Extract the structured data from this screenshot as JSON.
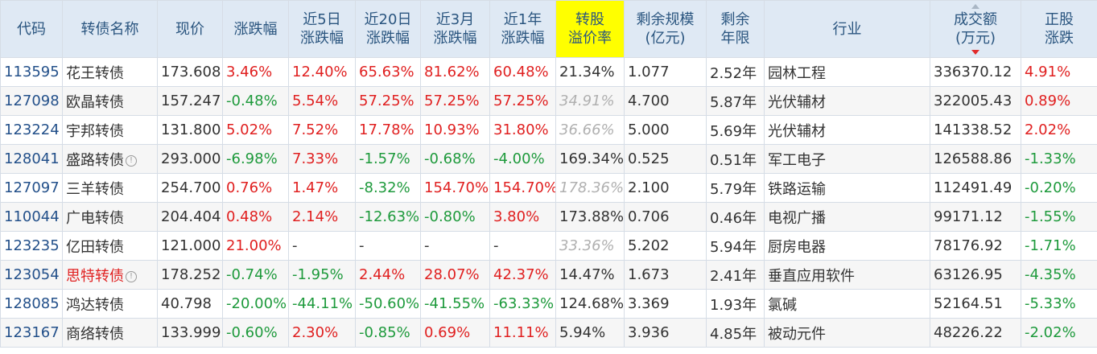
{
  "columns": [
    "代码",
    "转债名称",
    "现价",
    "涨跌幅",
    "近5日\n涨跌幅",
    "近20日\n涨跌幅",
    "近3月\n涨跌幅",
    "近1年\n涨跌幅",
    "转股\n溢价率",
    "剩余规模\n(亿元)",
    "剩余\n年限",
    "行业",
    "成交额\n(万元)",
    "正股\n涨跌"
  ],
  "colors": {
    "up": "#e02020",
    "down": "#1e9a3c",
    "code": "#23508a",
    "header_bg": "#dfe9f4",
    "highlight": "#ffff00"
  },
  "rows": [
    {
      "code": "113595",
      "name": "花王转债",
      "price": "173.608",
      "chg": "3.46%",
      "chg5": "12.40%",
      "chg20": "65.63%",
      "chg3m": "81.62%",
      "chg1y": "60.48%",
      "premium": "21.34%",
      "premium_muted": false,
      "size": "1.077",
      "years": "2.52年",
      "industry": "园林工程",
      "volume": "336370.12",
      "stock_chg": "4.91%"
    },
    {
      "code": "127098",
      "name": "欧晶转债",
      "price": "157.247",
      "chg": "-0.48%",
      "chg5": "5.54%",
      "chg20": "57.25%",
      "chg3m": "57.25%",
      "chg1y": "57.25%",
      "premium": "34.91%",
      "premium_muted": true,
      "size": "4.700",
      "years": "5.87年",
      "industry": "光伏辅材",
      "volume": "322005.43",
      "stock_chg": "0.89%"
    },
    {
      "code": "123224",
      "name": "宇邦转债",
      "price": "131.800",
      "chg": "5.02%",
      "chg5": "7.52%",
      "chg20": "17.78%",
      "chg3m": "10.93%",
      "chg1y": "31.80%",
      "premium": "36.66%",
      "premium_muted": true,
      "size": "5.000",
      "years": "5.69年",
      "industry": "光伏辅材",
      "volume": "141338.52",
      "stock_chg": "2.02%"
    },
    {
      "code": "128041",
      "name": "盛路转债",
      "info": "!",
      "price": "293.000",
      "chg": "-6.98%",
      "chg5": "7.33%",
      "chg20": "-1.57%",
      "chg3m": "-0.68%",
      "chg1y": "-4.00%",
      "premium": "169.34%",
      "premium_muted": false,
      "size": "0.525",
      "years": "0.51年",
      "industry": "军工电子",
      "volume": "126588.86",
      "stock_chg": "-1.33%"
    },
    {
      "code": "127097",
      "name": "三羊转债",
      "price": "254.700",
      "chg": "0.76%",
      "chg5": "1.47%",
      "chg20": "-8.32%",
      "chg3m": "154.70%",
      "chg1y": "154.70%",
      "premium": "178.36%",
      "premium_muted": true,
      "size": "2.100",
      "years": "5.79年",
      "industry": "铁路运输",
      "volume": "112491.49",
      "stock_chg": "-0.20%"
    },
    {
      "code": "110044",
      "name": "广电转债",
      "price": "204.404",
      "chg": "0.48%",
      "chg5": "2.14%",
      "chg20": "-12.63%",
      "chg3m": "-0.80%",
      "chg1y": "3.80%",
      "premium": "173.88%",
      "premium_muted": false,
      "size": "0.706",
      "years": "0.46年",
      "industry": "电视广播",
      "volume": "99171.12",
      "stock_chg": "-1.55%"
    },
    {
      "code": "123235",
      "name": "亿田转债",
      "price": "121.000",
      "chg": "21.00%",
      "chg5": "-",
      "chg20": "-",
      "chg3m": "-",
      "chg1y": "-",
      "premium": "33.36%",
      "premium_muted": true,
      "size": "5.202",
      "years": "5.94年",
      "industry": "厨房电器",
      "volume": "78176.92",
      "stock_chg": "-1.71%"
    },
    {
      "code": "123054",
      "name": "思特转债",
      "name_red": true,
      "info": "!",
      "price": "178.252",
      "chg": "-0.74%",
      "chg5": "-1.95%",
      "chg20": "2.44%",
      "chg3m": "28.07%",
      "chg1y": "42.37%",
      "premium": "14.47%",
      "premium_muted": false,
      "size": "1.673",
      "years": "2.41年",
      "industry": "垂直应用软件",
      "volume": "63126.95",
      "stock_chg": "-4.35%"
    },
    {
      "code": "128085",
      "name": "鸿达转债",
      "price": "40.798",
      "chg": "-20.00%",
      "chg5": "-44.11%",
      "chg20": "-50.60%",
      "chg3m": "-41.55%",
      "chg1y": "-63.33%",
      "premium": "124.68%",
      "premium_muted": false,
      "size": "3.369",
      "years": "1.93年",
      "industry": "氯碱",
      "volume": "52164.51",
      "stock_chg": "-5.33%"
    },
    {
      "code": "123167",
      "name": "商络转债",
      "price": "133.999",
      "chg": "-0.60%",
      "chg5": "2.30%",
      "chg20": "-0.85%",
      "chg3m": "0.69%",
      "chg1y": "11.11%",
      "premium": "5.94%",
      "premium_muted": false,
      "size": "3.936",
      "years": "4.85年",
      "industry": "被动元件",
      "volume": "48226.22",
      "stock_chg": "-2.02%"
    }
  ]
}
